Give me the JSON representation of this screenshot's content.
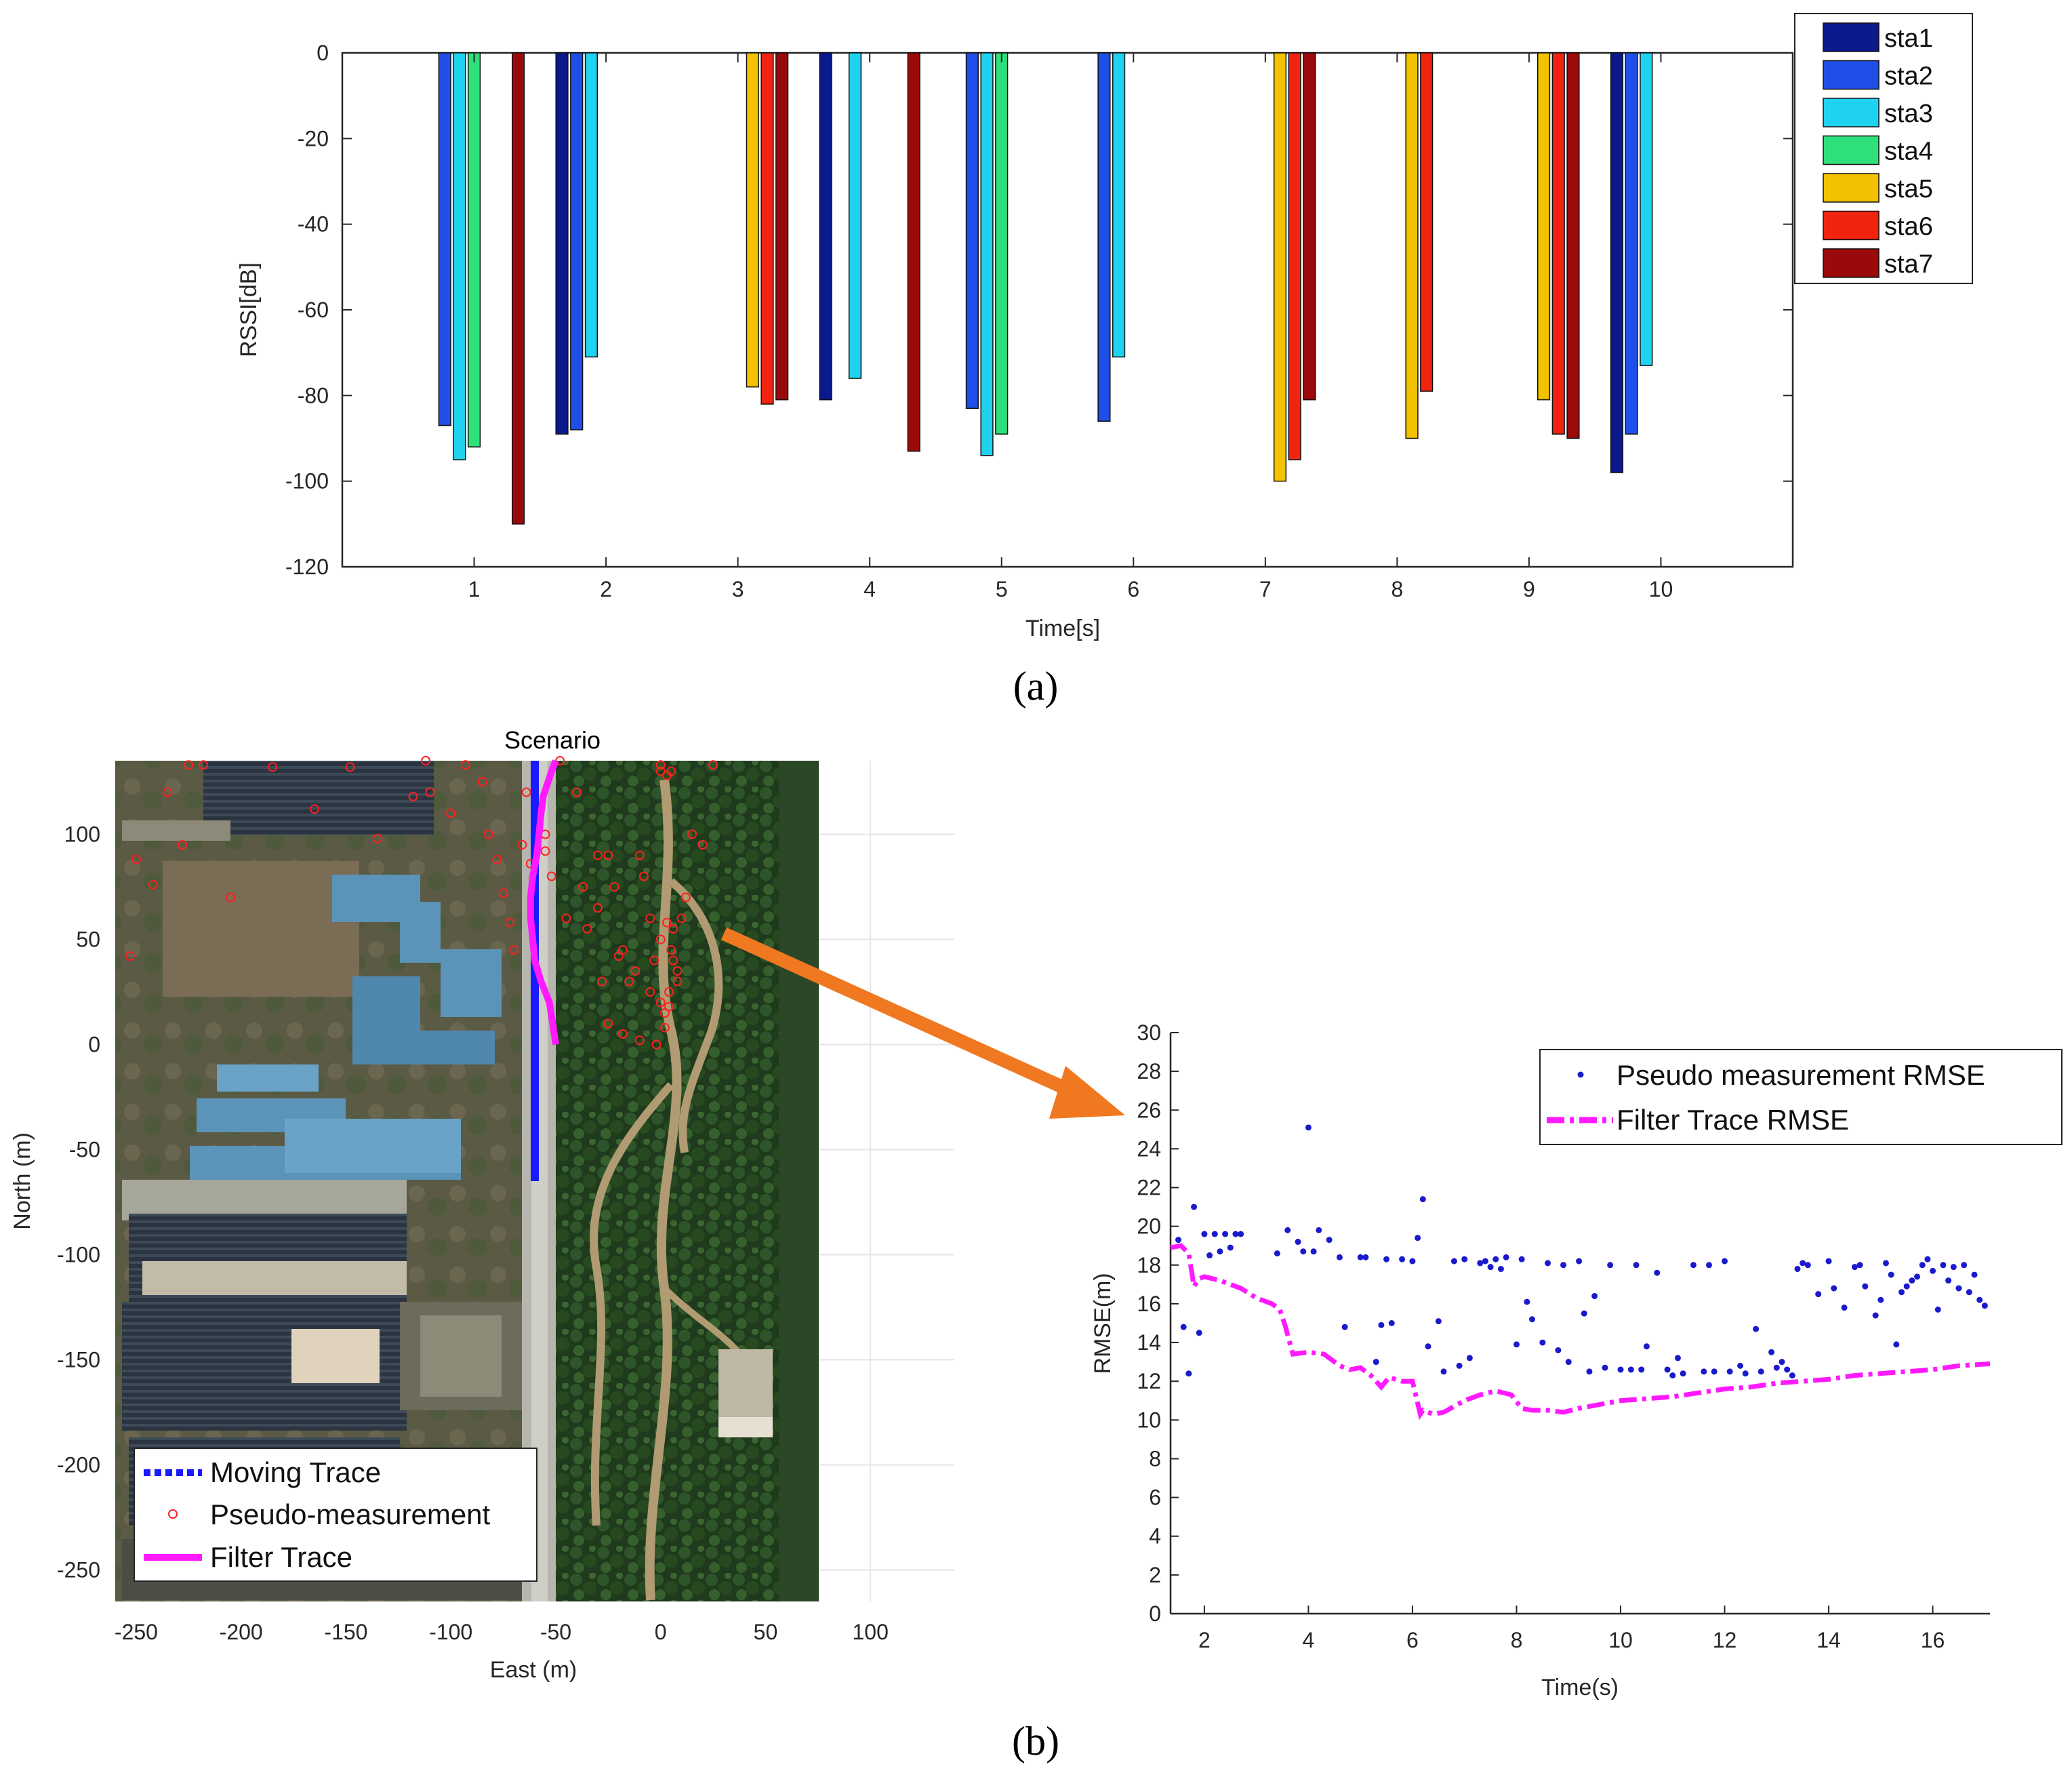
{
  "panel_labels": {
    "a": "(a)",
    "b": "(b)"
  },
  "colors": {
    "sta1": "#0a1a8c",
    "sta2": "#1f4fe8",
    "sta3": "#1fd3f0",
    "sta4": "#2ee07a",
    "sta5": "#f2c200",
    "sta6": "#f0240f",
    "sta7": "#9b0a0a",
    "filter": "#ff1aff",
    "moving": "#1a1aff",
    "pseudo": "#ff2020",
    "rmse_pts": "#1a1acc",
    "arrow": "#f07820"
  },
  "chart_data": [
    {
      "type": "bar",
      "xlabel": "Time[s]",
      "ylabel": "RSSI[dB]",
      "ylim": [
        -120,
        0
      ],
      "xlim": [
        0,
        11
      ],
      "xticks": [
        "1",
        "2",
        "3",
        "4",
        "5",
        "6",
        "7",
        "8",
        "9",
        "10"
      ],
      "yticks": [
        "0",
        "-20",
        "-40",
        "-60",
        "-80",
        "-100",
        "-120"
      ],
      "legend_position": "top-right",
      "series": [
        {
          "name": "sta1",
          "values": [
            0,
            -89,
            0,
            -81,
            0,
            0,
            0,
            0,
            0,
            -98
          ]
        },
        {
          "name": "sta2",
          "values": [
            -87,
            -88,
            0,
            0,
            -83,
            -86,
            0,
            0,
            0,
            -89
          ]
        },
        {
          "name": "sta3",
          "values": [
            -95,
            -71,
            0,
            -76,
            -94,
            -71,
            0,
            0,
            0,
            -73
          ]
        },
        {
          "name": "sta4",
          "values": [
            -92,
            0,
            0,
            0,
            -89,
            0,
            0,
            0,
            0,
            0
          ]
        },
        {
          "name": "sta5",
          "values": [
            0,
            0,
            -78,
            0,
            0,
            0,
            -100,
            -90,
            -81,
            0
          ]
        },
        {
          "name": "sta6",
          "values": [
            0,
            0,
            -82,
            0,
            0,
            0,
            -95,
            -79,
            -89,
            0
          ]
        },
        {
          "name": "sta7",
          "values": [
            -110,
            0,
            -81,
            -93,
            0,
            0,
            -81,
            0,
            -90,
            0
          ]
        }
      ]
    },
    {
      "type": "scatter",
      "title": "Scenario",
      "xlabel": "East (m)",
      "ylabel": "North (m)",
      "xlim": [
        -260,
        140
      ],
      "ylim": [
        -265,
        135
      ],
      "xticks": [
        "-250",
        "-200",
        "-150",
        "-100",
        "-50",
        "0",
        "50",
        "100"
      ],
      "yticks": [
        "100",
        "50",
        "0",
        "-50",
        "-100",
        "-150",
        "-200",
        "-250"
      ],
      "background": "satellite image",
      "legend_position": "bottom-left",
      "series": [
        {
          "name": "Moving Trace",
          "x": [
            -60,
            -60
          ],
          "y": [
            -65,
            135
          ]
        },
        {
          "name": "Filter Trace",
          "x": [
            -50,
            -53,
            -57,
            -60,
            -61,
            -62,
            -62,
            -61,
            -59,
            -58,
            -57,
            -56,
            -54,
            -52,
            -50
          ],
          "y": [
            0,
            20,
            30,
            40,
            50,
            60,
            70,
            80,
            90,
            100,
            110,
            118,
            124,
            130,
            135
          ]
        },
        {
          "name": "Pseudo-measurement",
          "x": [
            -253,
            -250,
            -242,
            -235,
            -228,
            -225,
            -218,
            -205,
            -185,
            -165,
            -148,
            -135,
            -118,
            -112,
            -110,
            -100,
            -93,
            -85,
            -82,
            -78,
            -75,
            -72,
            -70,
            -66,
            -64,
            -62,
            -55,
            -55,
            -52,
            -45,
            -40,
            -37,
            -35,
            -30,
            -28,
            -25,
            -22,
            -20,
            -18,
            -15,
            -12,
            -10,
            -8,
            -5,
            -3,
            0,
            2,
            4,
            5,
            6,
            8,
            10,
            12,
            15,
            20,
            25,
            -25,
            -18,
            -10,
            -5,
            0,
            3,
            6,
            8,
            4,
            2,
            -2,
            0,
            5,
            -48,
            -30,
            0,
            3
          ],
          "y": [
            42,
            88,
            76,
            120,
            95,
            133,
            133,
            70,
            132,
            112,
            132,
            98,
            118,
            135,
            120,
            110,
            133,
            125,
            100,
            88,
            72,
            58,
            45,
            95,
            120,
            86,
            92,
            100,
            80,
            60,
            120,
            75,
            55,
            65,
            30,
            90,
            75,
            42,
            45,
            30,
            35,
            90,
            80,
            60,
            40,
            20,
            15,
            25,
            45,
            55,
            35,
            60,
            70,
            100,
            95,
            133,
            10,
            5,
            2,
            25,
            50,
            58,
            40,
            30,
            18,
            8,
            0,
            133,
            130,
            135,
            90,
            130,
            128
          ]
        }
      ]
    },
    {
      "type": "line",
      "xlabel": "Time(s)",
      "ylabel": "RMSE(m)",
      "xlim": [
        1.35,
        17.1
      ],
      "ylim": [
        0,
        30
      ],
      "xticks": [
        "2",
        "4",
        "6",
        "8",
        "10",
        "12",
        "14",
        "16"
      ],
      "yticks": [
        "0",
        "2",
        "4",
        "6",
        "8",
        "10",
        "12",
        "14",
        "16",
        "18",
        "20",
        "22",
        "24",
        "26",
        "28",
        "30"
      ],
      "legend_position": "top-right",
      "series": [
        {
          "name": "Pseudo measurement RMSE",
          "x": [
            1.5,
            1.6,
            1.7,
            1.8,
            1.9,
            2.0,
            2.1,
            2.2,
            2.3,
            2.4,
            2.5,
            2.6,
            2.7,
            3.4,
            3.6,
            3.8,
            3.9,
            4.0,
            4.1,
            4.2,
            4.4,
            4.6,
            4.7,
            5.0,
            5.1,
            5.3,
            5.4,
            5.5,
            5.6,
            5.8,
            6.0,
            6.1,
            6.2,
            6.3,
            6.5,
            6.6,
            6.8,
            6.9,
            7.0,
            7.1,
            7.3,
            7.4,
            7.5,
            7.6,
            7.7,
            7.8,
            8.0,
            8.1,
            8.2,
            8.3,
            8.5,
            8.6,
            8.8,
            8.9,
            9.0,
            9.2,
            9.3,
            9.4,
            9.5,
            9.7,
            9.8,
            10.0,
            10.2,
            10.3,
            10.4,
            10.5,
            10.7,
            10.9,
            11.0,
            11.1,
            11.2,
            11.4,
            11.6,
            11.7,
            11.8,
            12.0,
            12.1,
            12.3,
            12.4,
            12.6,
            12.7,
            12.9,
            13.0,
            13.1,
            13.2,
            13.3,
            13.4,
            13.5,
            13.6,
            13.8,
            14.0,
            14.1,
            14.3,
            14.5,
            14.6,
            14.7,
            14.9,
            15.0,
            15.1,
            15.2,
            15.3,
            15.4,
            15.5,
            15.6,
            15.7,
            15.8,
            15.9,
            16.0,
            16.1,
            16.2,
            16.3,
            16.4,
            16.5,
            16.6,
            16.7,
            16.8,
            16.9,
            17.0
          ],
          "y": [
            19.3,
            14.8,
            12.4,
            21.0,
            14.5,
            19.6,
            18.5,
            19.6,
            18.7,
            19.6,
            18.9,
            19.6,
            19.6,
            18.6,
            19.8,
            19.2,
            18.7,
            25.1,
            18.7,
            19.8,
            19.3,
            18.4,
            14.8,
            18.4,
            18.4,
            13.0,
            14.9,
            18.3,
            15.0,
            18.3,
            18.2,
            19.4,
            21.4,
            13.8,
            15.1,
            12.5,
            18.2,
            12.8,
            18.3,
            13.2,
            18.1,
            18.2,
            17.9,
            18.3,
            17.8,
            18.4,
            13.9,
            18.3,
            16.1,
            15.2,
            14.0,
            18.1,
            13.6,
            18.0,
            13.0,
            18.2,
            15.5,
            12.5,
            16.4,
            12.7,
            18.0,
            12.6,
            12.6,
            18.0,
            12.6,
            13.8,
            17.6,
            12.6,
            12.3,
            13.2,
            12.4,
            18.0,
            12.5,
            18.0,
            12.5,
            18.2,
            12.5,
            12.8,
            12.4,
            14.7,
            12.5,
            13.5,
            12.7,
            13.0,
            12.6,
            12.3,
            17.8,
            18.1,
            18.0,
            16.5,
            18.2,
            16.8,
            15.8,
            17.9,
            18.0,
            16.9,
            15.4,
            16.2,
            18.1,
            17.5,
            13.9,
            16.6,
            16.9,
            17.2,
            17.4,
            18.0,
            18.3,
            17.7,
            15.7,
            18.0,
            17.2,
            17.9,
            16.8,
            18.0,
            16.6,
            17.5,
            16.2,
            15.9
          ],
          "marker": "dot"
        },
        {
          "name": "Filter Trace RMSE",
          "x": [
            1.35,
            1.55,
            1.7,
            1.8,
            1.9,
            2.0,
            2.3,
            2.7,
            3.0,
            3.3,
            3.45,
            3.55,
            3.7,
            4.0,
            4.3,
            4.6,
            4.8,
            5.0,
            5.2,
            5.4,
            5.55,
            5.8,
            6.0,
            6.15,
            6.2,
            6.4,
            6.6,
            6.8,
            7.0,
            7.3,
            7.6,
            7.9,
            8.1,
            8.3,
            8.6,
            8.9,
            9.2,
            9.6,
            10.0,
            10.5,
            11.0,
            11.5,
            12.0,
            12.5,
            13.0,
            13.5,
            14.0,
            14.5,
            15.0,
            15.5,
            16.0,
            16.5,
            17.1
          ],
          "y": [
            18.9,
            19.0,
            18.6,
            16.9,
            17.3,
            17.4,
            17.2,
            16.8,
            16.3,
            16.0,
            15.7,
            14.9,
            13.4,
            13.5,
            13.4,
            12.8,
            12.6,
            12.7,
            12.3,
            11.7,
            12.2,
            12.0,
            12.0,
            10.3,
            10.5,
            10.3,
            10.4,
            10.7,
            11.0,
            11.3,
            11.5,
            11.3,
            10.6,
            10.5,
            10.5,
            10.4,
            10.6,
            10.8,
            11.0,
            11.1,
            11.2,
            11.4,
            11.6,
            11.7,
            11.9,
            12.0,
            12.1,
            12.3,
            12.4,
            12.5,
            12.6,
            12.8,
            12.9
          ],
          "style": "dash-dot"
        }
      ]
    }
  ]
}
